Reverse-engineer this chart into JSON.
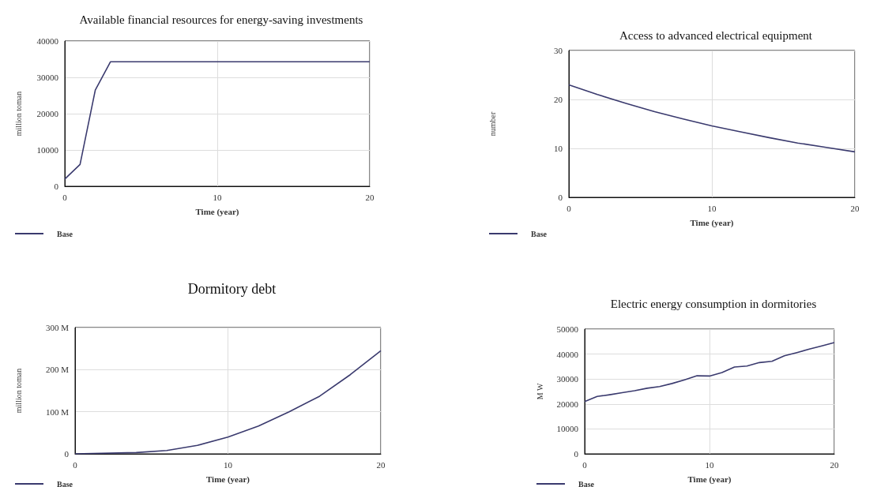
{
  "chart_data": [
    {
      "type": "line",
      "title": "Available financial resources for energy-saving investments",
      "xlabel": "Time (year)",
      "ylabel": "million toman",
      "x": [
        0,
        1,
        2,
        3,
        20
      ],
      "series": [
        {
          "name": "Base",
          "color": "#3a3a6e",
          "values": [
            2000,
            6000,
            26500,
            34300,
            34300
          ]
        }
      ],
      "xlim": [
        0,
        20
      ],
      "xticks": [
        0,
        10,
        20
      ],
      "ylim": [
        0,
        40000
      ],
      "yticks": [
        0,
        10000,
        20000,
        30000,
        40000
      ],
      "grid": true,
      "legend": "bottom left"
    },
    {
      "type": "line",
      "title": "Access to advanced electrical equipment",
      "xlabel": "Time (year)",
      "ylabel": "number",
      "x": [
        0,
        2,
        4,
        6,
        8,
        10,
        12,
        14,
        16,
        18,
        20
      ],
      "series": [
        {
          "name": "Base",
          "color": "#3a3a6e",
          "values": [
            23,
            21.0,
            19.2,
            17.5,
            16.0,
            14.6,
            13.4,
            12.2,
            11.1,
            10.2,
            9.3
          ]
        }
      ],
      "xlim": [
        0,
        20
      ],
      "xticks": [
        0,
        10,
        20
      ],
      "ylim": [
        0,
        30
      ],
      "yticks": [
        0,
        10,
        20,
        30
      ],
      "grid": true,
      "legend": "bottom left"
    },
    {
      "type": "line",
      "title": "Dormitory debt",
      "xlabel": "Time (year)",
      "ylabel": "million toman",
      "x": [
        0,
        4,
        6,
        8,
        10,
        12,
        14,
        16,
        18,
        20
      ],
      "series": [
        {
          "name": "Base",
          "color": "#3a3a6e",
          "values": [
            0,
            3000000,
            8000000,
            20000000,
            40000000,
            66000000,
            100000000,
            137000000,
            188000000,
            245000000
          ]
        }
      ],
      "xlim": [
        0,
        20
      ],
      "xticks": [
        0,
        10,
        20
      ],
      "ylim": [
        0,
        300000000
      ],
      "yticks": [
        {
          "value": 0,
          "label": "0"
        },
        {
          "value": 100000000,
          "label": "100 M"
        },
        {
          "value": 200000000,
          "label": "200 M"
        },
        {
          "value": 300000000,
          "label": "300 M"
        }
      ],
      "grid": true,
      "legend": "bottom left"
    },
    {
      "type": "line",
      "title": "Electric energy consumption in dormitories",
      "xlabel": "Time (year)",
      "ylabel": "M W",
      "x": [
        0,
        1,
        2,
        3,
        4,
        5,
        6,
        7,
        8,
        9,
        10,
        11,
        12,
        13,
        14,
        15,
        16,
        17,
        18,
        19,
        20
      ],
      "series": [
        {
          "name": "Base",
          "color": "#3a3a6e",
          "values": [
            21000,
            23000,
            23700,
            24500,
            25300,
            26300,
            27000,
            28200,
            29700,
            31300,
            31200,
            32600,
            34800,
            35200,
            36600,
            37100,
            39300,
            40600,
            42000,
            43300,
            44600
          ]
        }
      ],
      "xlim": [
        0,
        20
      ],
      "xticks": [
        0,
        10,
        20
      ],
      "ylim": [
        0,
        50000
      ],
      "yticks": [
        0,
        10000,
        20000,
        30000,
        40000,
        50000
      ],
      "grid": true,
      "legend": "bottom left"
    }
  ]
}
